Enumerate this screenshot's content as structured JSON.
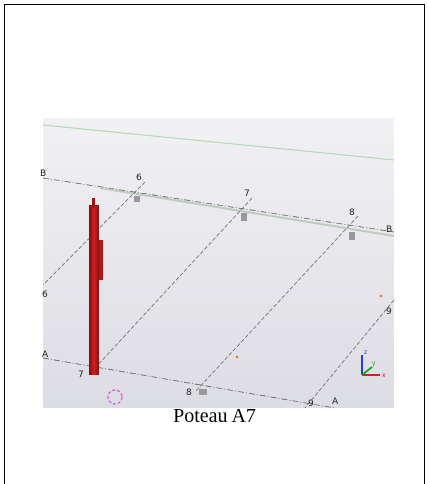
{
  "caption": "Poteau A7",
  "viewport": {
    "grid_labels": [
      "B",
      "6",
      "7",
      "8",
      "B",
      "6",
      "A",
      "7",
      "8",
      "9",
      "A",
      "9"
    ],
    "axis_labels": [
      "x",
      "y",
      "z"
    ]
  }
}
